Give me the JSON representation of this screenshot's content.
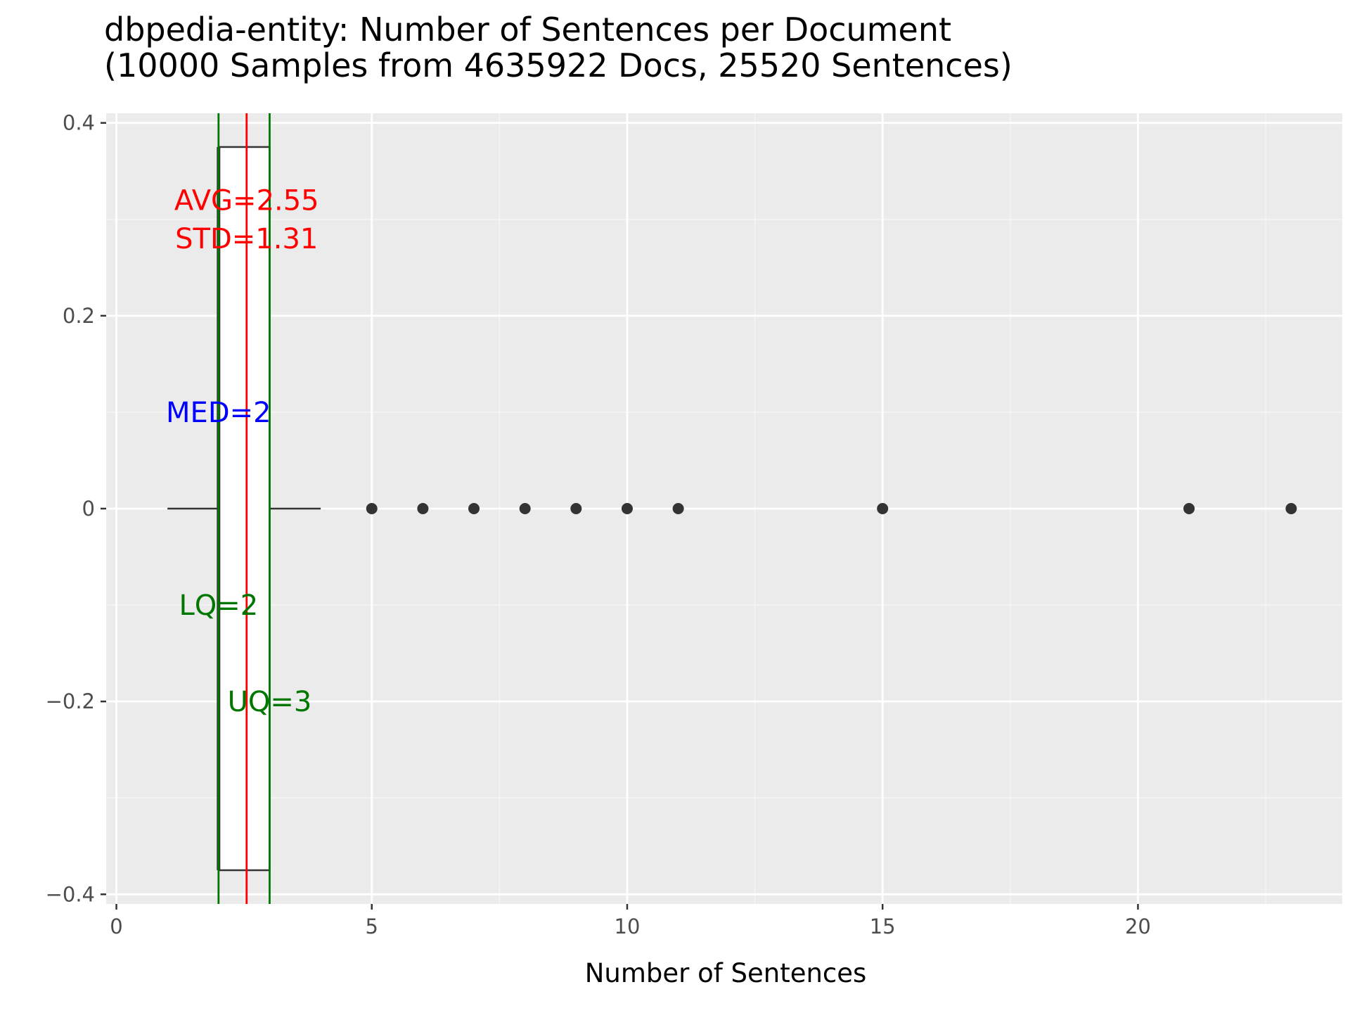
{
  "chart_data": {
    "type": "boxplot",
    "title": "dbpedia-entity: Number of Sentences per Document",
    "subtitle": "(10000 Samples from 4635922 Docs, 25520 Sentences)",
    "xlabel": "Number of Sentences",
    "ylabel": "",
    "xlim": [
      -0.2,
      24.0
    ],
    "ylim": [
      -0.41,
      0.41
    ],
    "x_ticks": [
      0,
      5,
      10,
      15,
      20
    ],
    "x_tick_labels": [
      "0",
      "5",
      "10",
      "15",
      "20"
    ],
    "y_ticks": [
      0.4,
      0.2,
      0,
      -0.2,
      -0.4
    ],
    "y_tick_labels": [
      "0.4",
      "0.2",
      "0",
      "−0.2",
      "−0.4"
    ],
    "grid": true,
    "box": {
      "whisker_low": 1,
      "lower_quartile": 2,
      "median": 2,
      "upper_quartile": 3,
      "whisker_high": 4,
      "y_center": 0,
      "half_width": 0.375
    },
    "outliers": [
      5,
      6,
      7,
      8,
      9,
      10,
      11,
      15,
      21,
      23
    ],
    "vertical_lines": [
      {
        "name": "mean",
        "x": 2.55,
        "color": "#ff0000"
      },
      {
        "name": "lower-quartile",
        "x": 2,
        "color": "#007700"
      },
      {
        "name": "upper-quartile",
        "x": 3,
        "color": "#007700"
      }
    ],
    "annotations": [
      {
        "name": "avg-label",
        "text": "AVG=2.55",
        "x": 2.55,
        "y": 0.32,
        "color": "#ff0000"
      },
      {
        "name": "std-label",
        "text": "STD=1.31",
        "x": 2.55,
        "y": 0.28,
        "color": "#ff0000"
      },
      {
        "name": "median-label",
        "text": "MED=2",
        "x": 2.0,
        "y": 0.1,
        "color": "#0000ff"
      },
      {
        "name": "lq-label",
        "text": "LQ=2",
        "x": 2.0,
        "y": -0.1,
        "color": "#007700"
      },
      {
        "name": "uq-label",
        "text": "UQ=3",
        "x": 3.0,
        "y": -0.2,
        "color": "#007700"
      }
    ],
    "colors": {
      "panel_background": "#ebebeb",
      "grid_major": "#ffffff",
      "grid_minor": "#f5f5f5",
      "box_fill": "#ffffff",
      "box_outline": "#333333",
      "outlier_point": "#333333"
    }
  }
}
